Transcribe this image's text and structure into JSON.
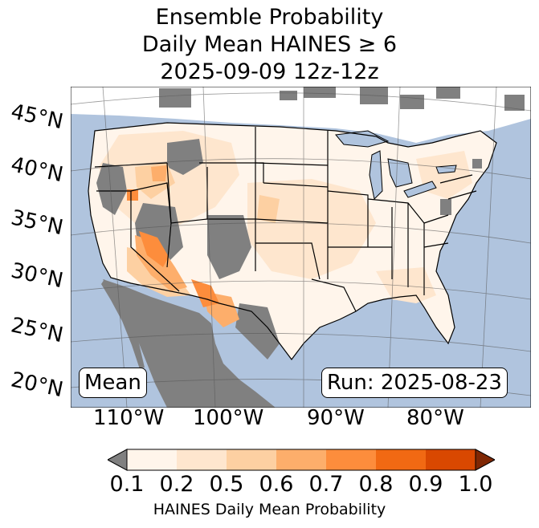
{
  "title": {
    "line1": "Ensemble Probability",
    "line2": "Daily Mean HAINES ≥ 6",
    "line3": "2025-09-09 12z-12z"
  },
  "map": {
    "latitude_labels": [
      "45°N",
      "40°N",
      "35°N",
      "30°N",
      "25°N",
      "20°N"
    ],
    "longitude_labels": [
      "110°W",
      "100°W",
      "90°W",
      "80°W"
    ],
    "colors": {
      "ocean": "#b0c4de",
      "land_masked": "#808080",
      "land_outside": "#ffffff"
    }
  },
  "labels": {
    "mean": "Mean",
    "run": "Run: 2025-08-23"
  },
  "colorbar": {
    "ticks": [
      "0.1",
      "0.2",
      "0.5",
      "0.6",
      "0.7",
      "0.8",
      "0.9",
      "1.0"
    ],
    "colors": [
      "#fff5eb",
      "#fee6ce",
      "#fdd0a2",
      "#fdae6b",
      "#fd8d3c",
      "#f16913",
      "#d94801"
    ],
    "under_color": "#808080",
    "over_color": "#7f2704",
    "label": "HAINES Daily Mean Probability"
  }
}
